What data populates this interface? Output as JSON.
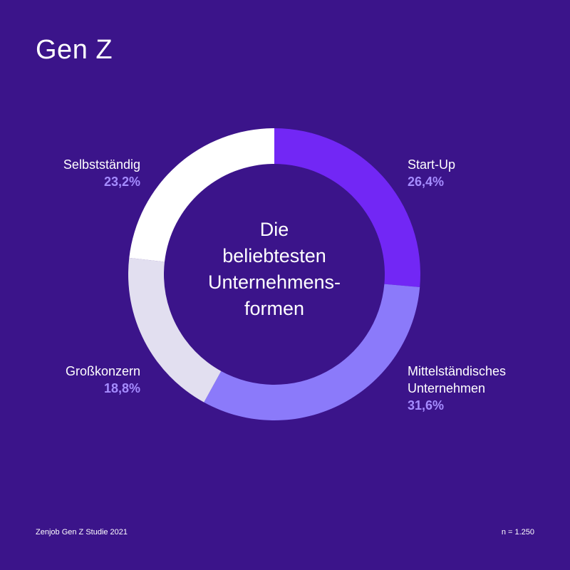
{
  "title": "Gen Z",
  "center_lines": [
    "Die",
    "beliebtesten",
    "Unternehmens-",
    "formen"
  ],
  "footer": {
    "source": "Zenjob Gen Z Studie 2021",
    "sample": "n = 1.250"
  },
  "chart_data": {
    "type": "pie",
    "donut": true,
    "start": "top",
    "direction": "clockwise",
    "slices": [
      {
        "label": "Start-Up",
        "label_lines": [
          "Start-Up"
        ],
        "value": 26.4,
        "value_label": "26,4%",
        "color": "#7227f5"
      },
      {
        "label": "Mittelständisches Unternehmen",
        "label_lines": [
          "Mittelständisches",
          "Unternehmen"
        ],
        "value": 31.6,
        "value_label": "31,6%",
        "color": "#8b7afa"
      },
      {
        "label": "Großkonzern",
        "label_lines": [
          "Großkonzern"
        ],
        "value": 18.8,
        "value_label": "18,8%",
        "color": "#e2dff0"
      },
      {
        "label": "Selbstständig",
        "label_lines": [
          "Selbstständig"
        ],
        "value": 23.2,
        "value_label": "23,2%",
        "color": "#ffffff"
      }
    ],
    "colors": {
      "background": "#3b148a",
      "value_text": "#a58cff"
    }
  }
}
